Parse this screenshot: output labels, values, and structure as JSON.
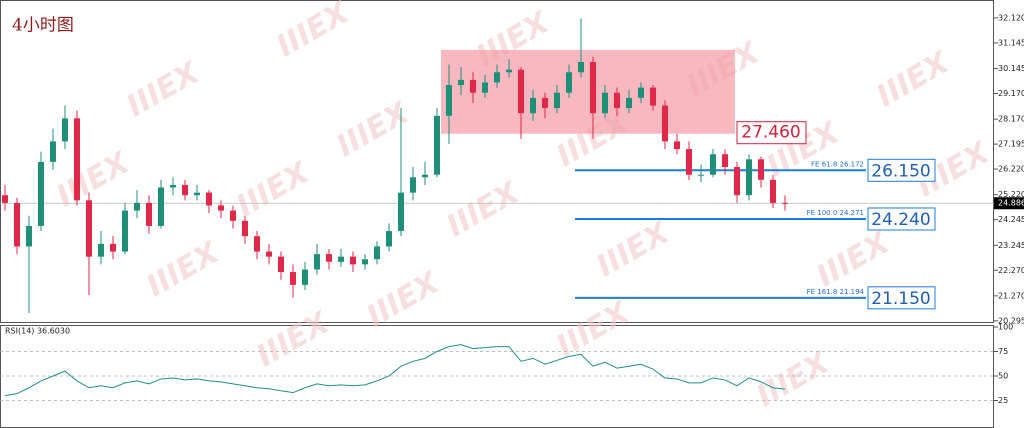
{
  "chart_data": {
    "type": "candlestick",
    "title": "4小时图",
    "watermark": "IIIEX",
    "up_color": "#1f8f7a",
    "down_color": "#e0294a",
    "ylim": [
      20.25,
      32.82
    ],
    "yticks": [
      {
        "value": 32.12,
        "label": "32.120"
      },
      {
        "value": 31.145,
        "label": "31.145"
      },
      {
        "value": 30.145,
        "label": "30.145"
      },
      {
        "value": 29.17,
        "label": "29.170"
      },
      {
        "value": 28.17,
        "label": "28.170"
      },
      {
        "value": 27.195,
        "label": "27.195"
      },
      {
        "value": 26.22,
        "label": "26.220"
      },
      {
        "value": 25.22,
        "label": "25.220"
      },
      {
        "value": 24.245,
        "label": "24.245"
      },
      {
        "value": 23.245,
        "label": "23.245"
      },
      {
        "value": 22.27,
        "label": "22.270"
      },
      {
        "value": 21.27,
        "label": "21.270"
      },
      {
        "value": 20.295,
        "label": "20.295"
      }
    ],
    "current_price": {
      "value": 24.886,
      "label": "24.886"
    },
    "zone": [
      27.6,
      30.87
    ],
    "zone_label": "27.460",
    "fib_levels": [
      {
        "value": 26.172,
        "label": "FE 61.8  26.172",
        "target": "26.150"
      },
      {
        "value": 24.271,
        "label": "FE 100.0  24.271",
        "target": "24.240"
      },
      {
        "value": 21.194,
        "label": "FE 161.8  21.194",
        "target": "21.150"
      }
    ],
    "candles": [
      [
        25.2,
        25.6,
        24.6,
        24.9
      ],
      [
        24.9,
        25.1,
        22.9,
        23.2
      ],
      [
        23.2,
        24.4,
        20.6,
        24.0
      ],
      [
        24.0,
        26.9,
        23.8,
        26.5
      ],
      [
        26.5,
        27.8,
        26.2,
        27.3
      ],
      [
        27.3,
        28.7,
        27.0,
        28.2
      ],
      [
        28.2,
        28.5,
        24.8,
        25.0
      ],
      [
        25.0,
        25.3,
        21.3,
        22.8
      ],
      [
        22.8,
        23.8,
        22.5,
        23.3
      ],
      [
        23.3,
        23.6,
        22.7,
        23.0
      ],
      [
        23.0,
        24.9,
        22.9,
        24.6
      ],
      [
        24.6,
        25.4,
        24.3,
        24.9
      ],
      [
        24.9,
        25.2,
        23.7,
        24.0
      ],
      [
        24.0,
        25.8,
        23.9,
        25.5
      ],
      [
        25.5,
        25.9,
        25.2,
        25.6
      ],
      [
        25.6,
        25.8,
        25.0,
        25.2
      ],
      [
        25.2,
        25.6,
        25.0,
        25.3
      ],
      [
        25.3,
        25.4,
        24.5,
        24.8
      ],
      [
        24.8,
        25.0,
        24.3,
        24.6
      ],
      [
        24.6,
        24.8,
        23.9,
        24.2
      ],
      [
        24.2,
        24.4,
        23.3,
        23.6
      ],
      [
        23.6,
        23.8,
        22.7,
        23.0
      ],
      [
        23.0,
        23.3,
        22.5,
        22.8
      ],
      [
        22.8,
        23.0,
        21.9,
        22.2
      ],
      [
        22.2,
        22.5,
        21.2,
        21.7
      ],
      [
        21.7,
        22.6,
        21.5,
        22.3
      ],
      [
        22.3,
        23.3,
        22.1,
        22.9
      ],
      [
        22.9,
        23.1,
        22.3,
        22.6
      ],
      [
        22.6,
        23.1,
        22.4,
        22.8
      ],
      [
        22.8,
        23.0,
        22.2,
        22.5
      ],
      [
        22.5,
        22.9,
        22.3,
        22.7
      ],
      [
        22.7,
        23.4,
        22.5,
        23.2
      ],
      [
        23.2,
        24.1,
        23.0,
        23.8
      ],
      [
        23.8,
        28.6,
        23.6,
        25.3
      ],
      [
        25.3,
        26.3,
        25.0,
        25.9
      ],
      [
        25.9,
        26.5,
        25.6,
        26.0
      ],
      [
        26.0,
        28.6,
        25.9,
        28.3
      ],
      [
        28.3,
        30.3,
        27.2,
        29.5
      ],
      [
        29.5,
        30.2,
        29.1,
        29.7
      ],
      [
        29.7,
        30.0,
        28.8,
        29.2
      ],
      [
        29.2,
        29.9,
        29.0,
        29.6
      ],
      [
        29.6,
        30.3,
        29.4,
        30.0
      ],
      [
        30.0,
        30.5,
        29.8,
        30.1
      ],
      [
        30.1,
        30.2,
        27.4,
        28.4
      ],
      [
        28.4,
        29.3,
        28.1,
        29.0
      ],
      [
        29.0,
        29.2,
        28.2,
        28.6
      ],
      [
        28.6,
        29.5,
        28.4,
        29.2
      ],
      [
        29.2,
        30.3,
        29.0,
        30.0
      ],
      [
        30.0,
        32.1,
        29.8,
        30.4
      ],
      [
        30.4,
        30.6,
        27.4,
        28.4
      ],
      [
        28.4,
        29.5,
        28.2,
        29.2
      ],
      [
        29.2,
        29.4,
        28.3,
        28.6
      ],
      [
        28.6,
        29.3,
        28.4,
        29.0
      ],
      [
        29.0,
        29.6,
        28.8,
        29.4
      ],
      [
        29.4,
        29.5,
        28.5,
        28.7
      ],
      [
        28.7,
        28.9,
        27.0,
        27.3
      ],
      [
        27.3,
        27.6,
        26.8,
        27.0
      ],
      [
        27.0,
        27.3,
        25.8,
        26.0
      ],
      [
        26.0,
        26.4,
        25.7,
        26.0
      ],
      [
        26.0,
        27.0,
        25.9,
        26.8
      ],
      [
        26.8,
        27.0,
        26.0,
        26.3
      ],
      [
        26.3,
        26.5,
        24.9,
        25.2
      ],
      [
        25.2,
        26.8,
        25.0,
        26.6
      ],
      [
        26.6,
        26.7,
        25.5,
        25.8
      ],
      [
        25.8,
        26.0,
        24.7,
        24.9
      ],
      [
        24.9,
        25.2,
        24.6,
        24.886
      ]
    ],
    "rsi": {
      "label": "RSI(14) 36.6030",
      "color": "#1f8f8a",
      "ylim": [
        0,
        100
      ],
      "yticks": [
        100,
        75,
        50,
        25
      ],
      "values": [
        30,
        32,
        38,
        45,
        50,
        55,
        45,
        38,
        40,
        38,
        43,
        45,
        42,
        47,
        48,
        46,
        47,
        45,
        44,
        42,
        40,
        38,
        37,
        35,
        33,
        38,
        42,
        40,
        41,
        40,
        41,
        45,
        50,
        60,
        65,
        68,
        75,
        80,
        82,
        78,
        79,
        80,
        80,
        65,
        68,
        62,
        66,
        70,
        72,
        60,
        64,
        58,
        60,
        62,
        57,
        48,
        47,
        43,
        43,
        48,
        46,
        40,
        48,
        44,
        38,
        36.603
      ]
    }
  }
}
